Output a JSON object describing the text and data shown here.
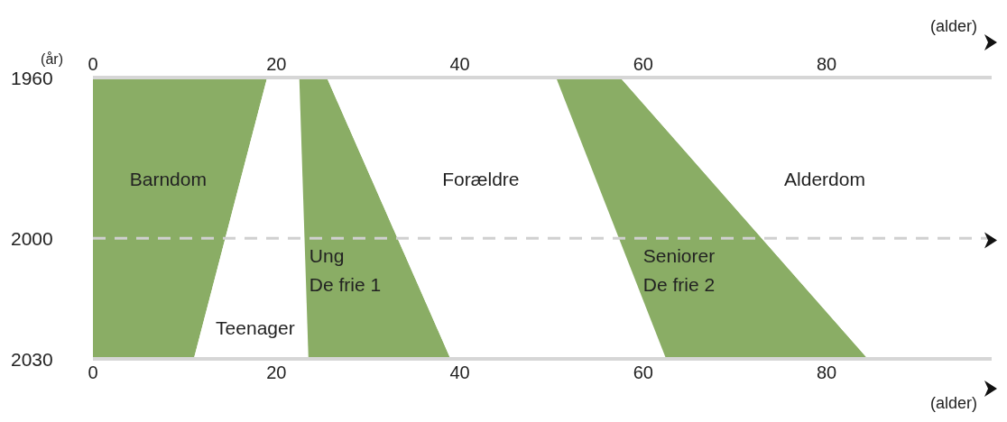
{
  "chart_data": {
    "type": "area",
    "orientation": "horizontal",
    "stacked": true,
    "x": [
      1960,
      2030
    ],
    "series": [
      {
        "name": "Barndom",
        "color": "#8aad65",
        "values": [
          19,
          11
        ]
      },
      {
        "name": "Teenager",
        "color": "#ffffff",
        "values": [
          3.5,
          12.5
        ]
      },
      {
        "name": "Ung\nDe frie 1",
        "color": "#8aad65",
        "values": [
          3,
          15.5
        ]
      },
      {
        "name": "Forældre",
        "color": "#ffffff",
        "values": [
          25,
          23.5
        ]
      },
      {
        "name": "Seniorer\nDe frie 2",
        "color": "#8aad65",
        "values": [
          7,
          22
        ]
      },
      {
        "name": "Alderdom",
        "color": "#ffffff",
        "values": [
          40.5,
          13.5
        ]
      }
    ],
    "xlabel": "(alder)",
    "x2label": "(alder)",
    "ylabel": "(år)",
    "xlim": [
      0,
      98
    ],
    "xticks": [
      0,
      20,
      40,
      60,
      80
    ],
    "x2lim": [
      0,
      98
    ],
    "x2ticks": [
      0,
      20,
      40,
      60,
      80
    ],
    "ylim": [
      2030,
      1960
    ],
    "yticks": [
      1960,
      2000,
      2030
    ],
    "ref_lines": [
      {
        "axis": "y",
        "value": 2000,
        "color": "#d0d0d0",
        "line_style": "dashed"
      }
    ]
  }
}
